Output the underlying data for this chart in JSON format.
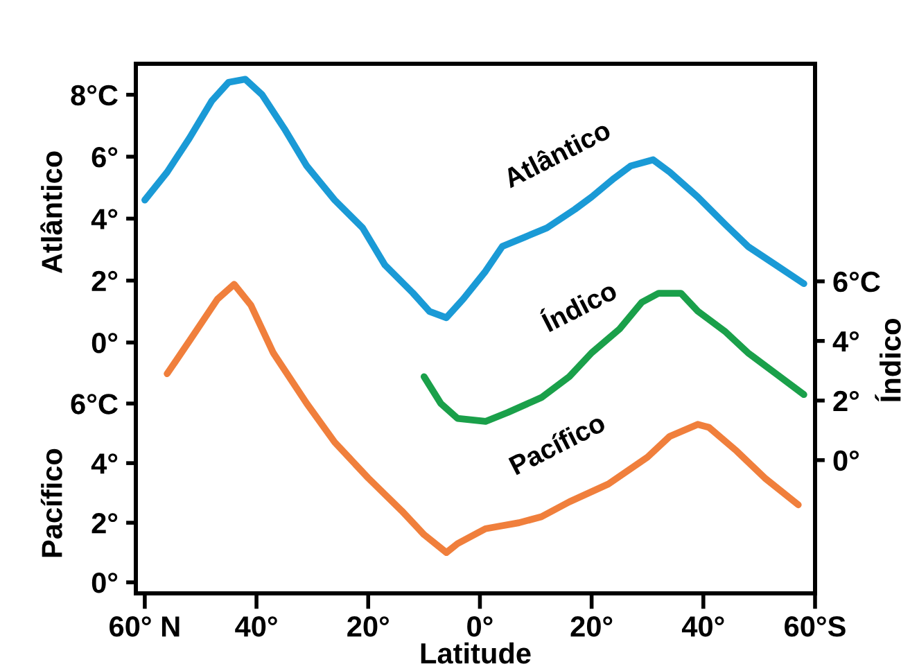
{
  "chart_data": {
    "type": "line",
    "xlabel": "Latitude",
    "ylabel": "Atlântico",
    "y3label": "Pacífico",
    "y2label": "Índico",
    "xlim": [
      61.6,
      -60
    ],
    "xticks": [
      {
        "value": 60,
        "label": "60° N"
      },
      {
        "value": 40,
        "label": "40°"
      },
      {
        "value": 20,
        "label": "20°"
      },
      {
        "value": 0,
        "label": "0°"
      },
      {
        "value": -20,
        "label": "20°"
      },
      {
        "value": -40,
        "label": "40°"
      },
      {
        "value": -60,
        "label": "60°S"
      }
    ],
    "ylim": [
      -8.1,
      9.0
    ],
    "yticks": [
      {
        "value": 0,
        "label": "0°"
      },
      {
        "value": 2,
        "label": "2°"
      },
      {
        "value": 4,
        "label": "4°"
      },
      {
        "value": 6,
        "label": "6°"
      },
      {
        "value": 8,
        "label": "8°C"
      }
    ],
    "y3lim": [
      -0.37,
      17.4
    ],
    "y3ticks": [
      {
        "value": 0,
        "label": "0°"
      },
      {
        "value": 2,
        "label": "2°"
      },
      {
        "value": 4,
        "label": "4°"
      },
      {
        "value": 6,
        "label": "6°C"
      }
    ],
    "y2lim": [
      -4.47,
      13.3
    ],
    "y2ticks": [
      {
        "value": 0,
        "label": "0°"
      },
      {
        "value": 2,
        "label": "2°"
      },
      {
        "value": 4,
        "label": "4°"
      },
      {
        "value": 6,
        "label": "6°C"
      }
    ],
    "grid": false,
    "legend": false,
    "marker": "none",
    "line_style": "solid",
    "series": [
      {
        "name": "Atlântico",
        "color": "#1a9ad6",
        "axis": "y",
        "x": [
          60,
          56,
          52,
          48,
          45,
          42,
          39,
          35,
          31,
          26,
          21,
          17,
          12,
          9,
          6,
          3,
          -1,
          -4,
          -8,
          -12,
          -17,
          -20,
          -24,
          -27,
          -31,
          -34,
          -39,
          -44,
          -48,
          -53,
          -58
        ],
        "values": [
          4.6,
          5.5,
          6.6,
          7.8,
          8.4,
          8.5,
          8.0,
          6.9,
          5.7,
          4.6,
          3.7,
          2.5,
          1.6,
          1.0,
          0.8,
          1.4,
          2.3,
          3.1,
          3.4,
          3.7,
          4.3,
          4.7,
          5.3,
          5.7,
          5.9,
          5.5,
          4.7,
          3.8,
          3.1,
          2.5,
          1.9
        ]
      },
      {
        "name": "Pacífico",
        "color": "#f07f3c",
        "axis": "y3",
        "x": [
          56,
          52,
          47,
          44,
          41,
          37,
          31,
          26,
          20,
          14,
          10,
          6,
          4,
          -1,
          -7,
          -11,
          -16,
          -23,
          -30,
          -34,
          -39,
          -41,
          -46,
          -51,
          -57
        ],
        "values": [
          7.0,
          8.1,
          9.5,
          10.0,
          9.3,
          7.7,
          6.0,
          4.7,
          3.5,
          2.4,
          1.6,
          1.0,
          1.3,
          1.8,
          2.0,
          2.2,
          2.7,
          3.3,
          4.2,
          4.9,
          5.3,
          5.2,
          4.4,
          3.5,
          2.6
        ]
      },
      {
        "name": "Índico",
        "color": "#1aa04a",
        "axis": "y2",
        "x": [
          10,
          7,
          4,
          -1,
          -5,
          -11,
          -16,
          -20,
          -25,
          -29,
          -32,
          -36,
          -39,
          -44,
          -48,
          -53,
          -58
        ],
        "values": [
          2.8,
          1.9,
          1.4,
          1.3,
          1.6,
          2.1,
          2.8,
          3.6,
          4.4,
          5.3,
          5.6,
          5.6,
          5.0,
          4.3,
          3.6,
          2.9,
          2.2
        ]
      }
    ]
  }
}
